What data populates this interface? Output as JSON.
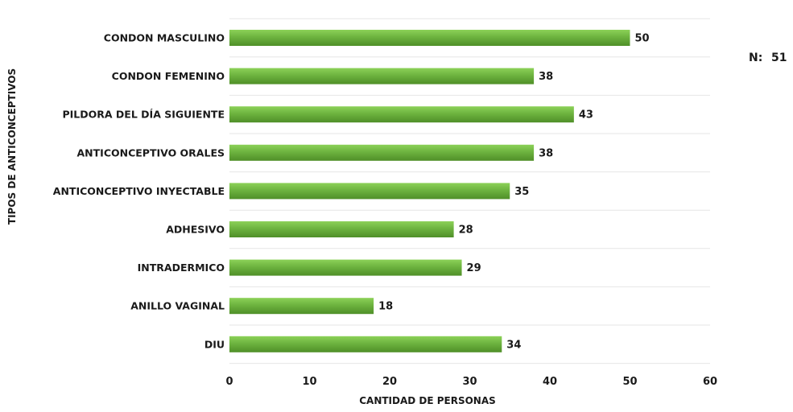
{
  "chart_data": {
    "type": "bar",
    "orientation": "horizontal",
    "categories": [
      "CONDON MASCULINO",
      "CONDON FEMENINO",
      "PILDORA DEL DÍA SIGUIENTE",
      "ANTICONCEPTIVO ORALES",
      "ANTICONCEPTIVO INYECTABLE",
      "ADHESIVO",
      "INTRADERMICO",
      "ANILLO VAGINAL",
      "DIU"
    ],
    "values": [
      50,
      38,
      43,
      38,
      35,
      28,
      29,
      18,
      34
    ],
    "xlabel": "CANTIDAD DE PERSONAS",
    "ylabel": "TIPOS DE ANTICONCEPTIVOS",
    "xlim": [
      0,
      60
    ],
    "x_ticks": [
      "0",
      "10",
      "20",
      "30",
      "40",
      "50",
      "60"
    ],
    "grid": "horizontal",
    "bar_color": "#6db33f",
    "bar_color_light": "#8cd158",
    "bar_color_dark": "#4f8f28",
    "annotation": {
      "label": "N:",
      "value": "51"
    }
  }
}
